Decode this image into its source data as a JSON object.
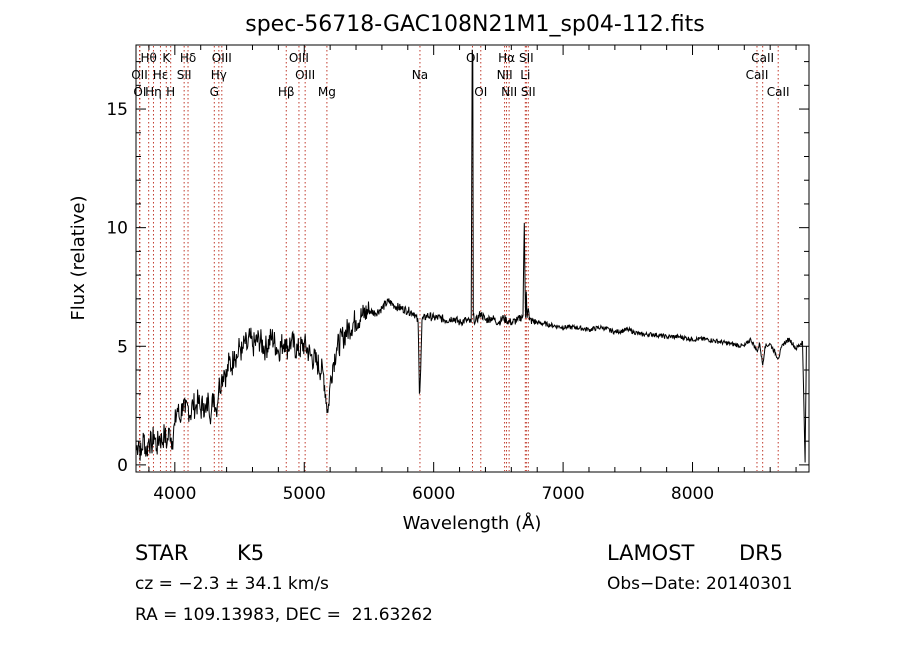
{
  "chart_data": {
    "type": "line",
    "title": "spec-56718-GAC108N21M1_sp04-112.fits",
    "xlabel": "Wavelength (Å)",
    "ylabel": "Flux (relative)",
    "xlim": [
      3700,
      8900
    ],
    "ylim": [
      -0.3,
      17.7
    ],
    "xticks": [
      4000,
      5000,
      6000,
      7000,
      8000
    ],
    "yticks": [
      0,
      5,
      10,
      15
    ],
    "grid": false,
    "series": [
      {
        "points": [
          [
            3700,
            0.6
          ],
          [
            3720,
            1.0
          ],
          [
            3740,
            0.4
          ],
          [
            3760,
            1.2
          ],
          [
            3780,
            0.5
          ],
          [
            3800,
            1.1
          ],
          [
            3820,
            0.8
          ],
          [
            3840,
            1.3
          ],
          [
            3860,
            0.7
          ],
          [
            3880,
            1.2
          ],
          [
            3900,
            1.0
          ],
          [
            3920,
            1.3
          ],
          [
            3940,
            0.9
          ],
          [
            3960,
            1.5
          ],
          [
            3980,
            1.0
          ],
          [
            4000,
            1.7
          ],
          [
            4020,
            2.4
          ],
          [
            4040,
            1.9
          ],
          [
            4060,
            2.6
          ],
          [
            4080,
            2.2
          ],
          [
            4100,
            2.5
          ],
          [
            4120,
            2.1
          ],
          [
            4140,
            2.6
          ],
          [
            4160,
            2.4
          ],
          [
            4180,
            2.7
          ],
          [
            4200,
            2.3
          ],
          [
            4220,
            2.6
          ],
          [
            4240,
            2.2
          ],
          [
            4260,
            2.8
          ],
          [
            4280,
            2.1
          ],
          [
            4300,
            3.0
          ],
          [
            4320,
            2.3
          ],
          [
            4340,
            3.3
          ],
          [
            4360,
            3.6
          ],
          [
            4380,
            4.0
          ],
          [
            4400,
            3.7
          ],
          [
            4420,
            4.4
          ],
          [
            4440,
            4.1
          ],
          [
            4460,
            4.8
          ],
          [
            4480,
            4.5
          ],
          [
            4500,
            5.0
          ],
          [
            4520,
            4.7
          ],
          [
            4540,
            5.2
          ],
          [
            4560,
            4.9
          ],
          [
            4580,
            5.4
          ],
          [
            4600,
            5.0
          ],
          [
            4650,
            5.3
          ],
          [
            4700,
            4.9
          ],
          [
            4750,
            5.4
          ],
          [
            4800,
            4.8
          ],
          [
            4850,
            5.3
          ],
          [
            4861,
            4.9
          ],
          [
            4900,
            5.2
          ],
          [
            4950,
            4.8
          ],
          [
            5000,
            5.1
          ],
          [
            5050,
            4.6
          ],
          [
            5100,
            4.3
          ],
          [
            5150,
            3.8
          ],
          [
            5172,
            2.6
          ],
          [
            5183,
            2.2
          ],
          [
            5200,
            3.4
          ],
          [
            5220,
            4.2
          ],
          [
            5250,
            4.9
          ],
          [
            5300,
            5.4
          ],
          [
            5350,
            5.8
          ],
          [
            5400,
            6.1
          ],
          [
            5450,
            6.3
          ],
          [
            5500,
            6.5
          ],
          [
            5550,
            6.4
          ],
          [
            5600,
            6.6
          ],
          [
            5650,
            6.9
          ],
          [
            5700,
            6.7
          ],
          [
            5750,
            6.6
          ],
          [
            5800,
            6.5
          ],
          [
            5850,
            6.4
          ],
          [
            5880,
            6.0
          ],
          [
            5890,
            3.0
          ],
          [
            5896,
            3.5
          ],
          [
            5910,
            6.1
          ],
          [
            5950,
            6.3
          ],
          [
            6000,
            6.2
          ],
          [
            6050,
            6.2
          ],
          [
            6100,
            6.1
          ],
          [
            6150,
            6.2
          ],
          [
            6200,
            6.0
          ],
          [
            6250,
            6.1
          ],
          [
            6290,
            6.0
          ],
          [
            6298,
            17.5
          ],
          [
            6302,
            17.2
          ],
          [
            6306,
            6.3
          ],
          [
            6320,
            6.0
          ],
          [
            6364,
            6.4
          ],
          [
            6400,
            6.1
          ],
          [
            6450,
            6.2
          ],
          [
            6500,
            6.0
          ],
          [
            6540,
            6.2
          ],
          [
            6563,
            6.1
          ],
          [
            6600,
            6.0
          ],
          [
            6650,
            6.1
          ],
          [
            6690,
            6.3
          ],
          [
            6700,
            10.2
          ],
          [
            6710,
            6.2
          ],
          [
            6716,
            7.3
          ],
          [
            6722,
            6.2
          ],
          [
            6731,
            6.6
          ],
          [
            6740,
            6.1
          ],
          [
            6800,
            6.0
          ],
          [
            6900,
            5.9
          ],
          [
            7000,
            5.8
          ],
          [
            7100,
            5.8
          ],
          [
            7200,
            5.7
          ],
          [
            7300,
            5.8
          ],
          [
            7400,
            5.6
          ],
          [
            7500,
            5.7
          ],
          [
            7600,
            5.5
          ],
          [
            7700,
            5.5
          ],
          [
            7800,
            5.4
          ],
          [
            7900,
            5.4
          ],
          [
            8000,
            5.3
          ],
          [
            8100,
            5.3
          ],
          [
            8200,
            5.2
          ],
          [
            8300,
            5.1
          ],
          [
            8400,
            5.0
          ],
          [
            8450,
            5.3
          ],
          [
            8498,
            4.8
          ],
          [
            8520,
            5.1
          ],
          [
            8542,
            4.2
          ],
          [
            8560,
            5.0
          ],
          [
            8600,
            5.1
          ],
          [
            8662,
            4.5
          ],
          [
            8700,
            5.1
          ],
          [
            8750,
            5.3
          ],
          [
            8800,
            4.9
          ],
          [
            8850,
            5.2
          ],
          [
            8870,
            0.1
          ],
          [
            8880,
            5.0
          ]
        ]
      }
    ],
    "lines": [
      {
        "label": "Hθ",
        "x": 3798,
        "row": 0
      },
      {
        "label": "OII",
        "x": 3727,
        "row": 1
      },
      {
        "label": "OI",
        "x": 3730,
        "row": 2
      },
      {
        "label": "Hη",
        "x": 3835,
        "row": 2
      },
      {
        "label": "Hε",
        "x": 3889,
        "row": 1
      },
      {
        "label": "K",
        "x": 3934,
        "row": 0
      },
      {
        "label": "H",
        "x": 3968,
        "row": 2
      },
      {
        "label": "Hδ",
        "x": 4102,
        "row": 0
      },
      {
        "label": "SII",
        "x": 4072,
        "row": 1
      },
      {
        "label": "OIII",
        "x": 4363,
        "row": 0
      },
      {
        "label": "Hγ",
        "x": 4340,
        "row": 1
      },
      {
        "label": "G",
        "x": 4305,
        "row": 2
      },
      {
        "label": "Hβ",
        "x": 4861,
        "row": 2
      },
      {
        "label": "OIII",
        "x": 4959,
        "row": 0
      },
      {
        "label": "OIII",
        "x": 5007,
        "row": 1
      },
      {
        "label": "Mg",
        "x": 5175,
        "row": 2
      },
      {
        "label": "Na",
        "x": 5894,
        "row": 1
      },
      {
        "label": "OI",
        "x": 6300,
        "row": 0
      },
      {
        "label": "OI",
        "x": 6364,
        "row": 2
      },
      {
        "label": "Hα",
        "x": 6563,
        "row": 0
      },
      {
        "label": "NII",
        "x": 6548,
        "row": 1
      },
      {
        "label": "NII",
        "x": 6583,
        "row": 2
      },
      {
        "label": "SII",
        "x": 6716,
        "row": 0
      },
      {
        "label": "Li",
        "x": 6708,
        "row": 1
      },
      {
        "label": "SII",
        "x": 6731,
        "row": 2
      },
      {
        "label": "CaII",
        "x": 8542,
        "row": 0
      },
      {
        "label": "CaII",
        "x": 8498,
        "row": 1
      },
      {
        "label": "CaII",
        "x": 8662,
        "row": 2
      }
    ]
  },
  "info": {
    "class": "STAR",
    "subclass": "K5",
    "survey": "LAMOST",
    "release": "DR5",
    "cz": "cz = −2.3 ± 34.1 km/s",
    "obs_date": "Obs−Date: 20140301",
    "coords": "RA = 109.13983, DEC =  21.63262"
  }
}
